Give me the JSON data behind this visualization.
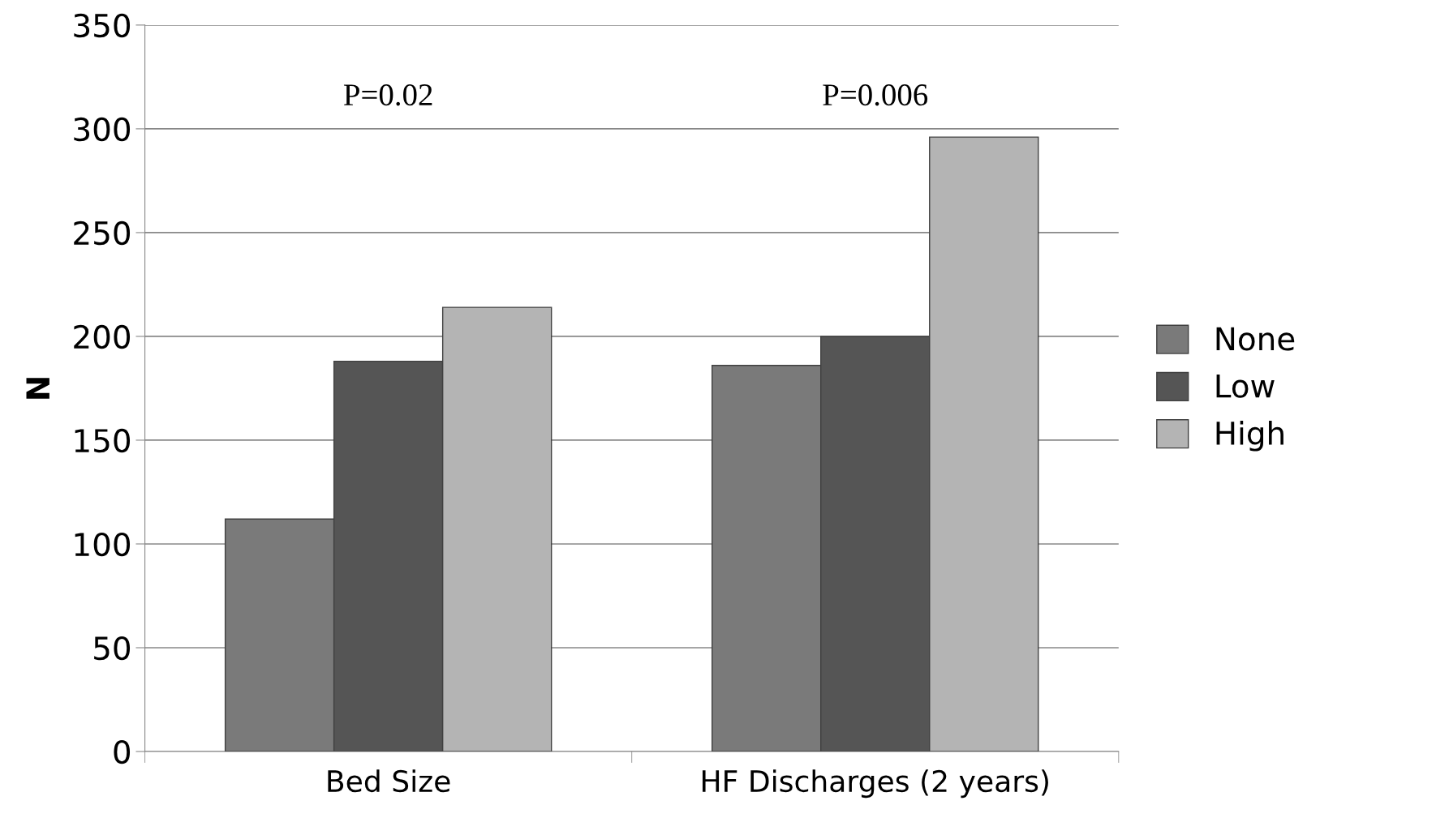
{
  "chart_data": {
    "type": "bar",
    "ylabel": "N",
    "categories": [
      "Bed Size",
      "HF Discharges (2 years)"
    ],
    "series": [
      {
        "name": "None",
        "color": "#7a7a7a",
        "values": [
          112,
          186
        ]
      },
      {
        "name": "Low",
        "color": "#555555",
        "values": [
          188,
          200
        ]
      },
      {
        "name": "High",
        "color": "#b4b4b4",
        "values": [
          214,
          296
        ]
      }
    ],
    "ylim": [
      0,
      350
    ],
    "yticks": [
      0,
      50,
      100,
      150,
      200,
      250,
      300,
      350
    ],
    "grid": "y",
    "legend": "right",
    "annotations": [
      "P=0.02",
      "P=0.006"
    ]
  }
}
